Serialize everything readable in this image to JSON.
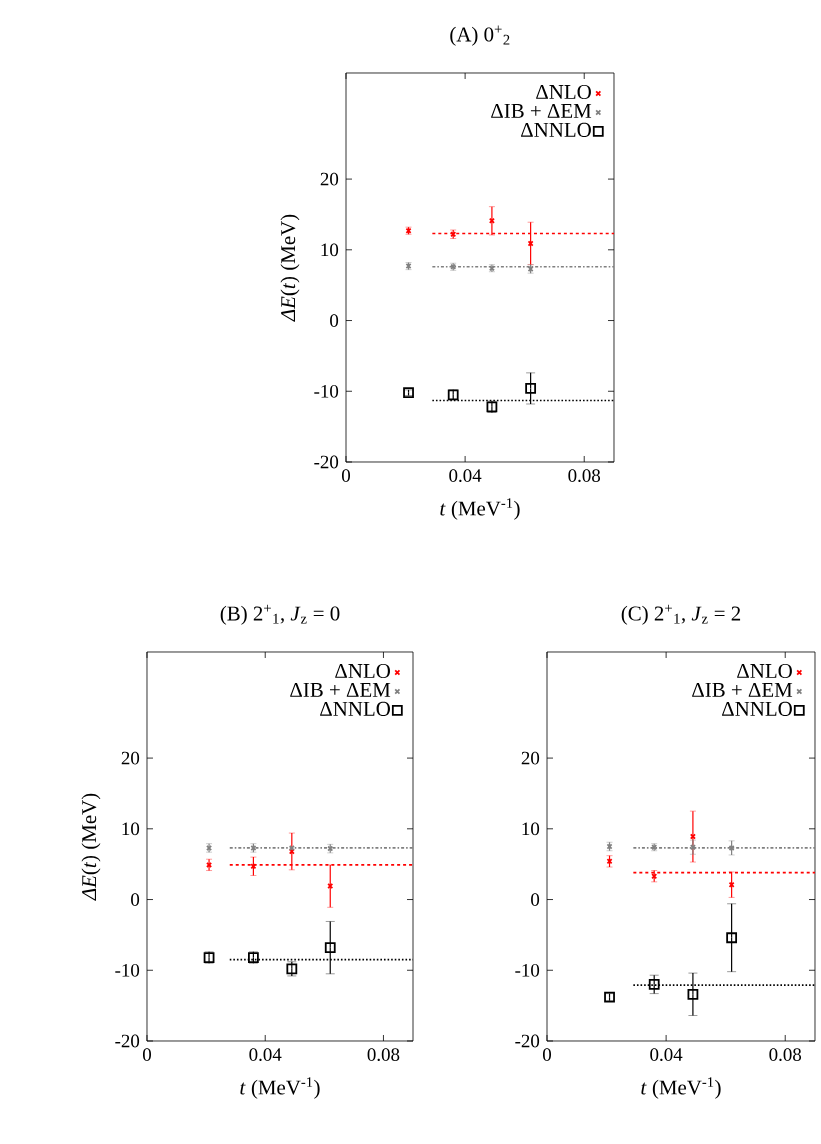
{
  "chart_data": [
    {
      "type": "scatter",
      "title": "(A)  0$^{+}$$_{2}$",
      "xlabel": "*t* (MeV$^{-1}$)",
      "ylabel": "*ΔE*(*t*) (MeV)",
      "xlim": [
        0,
        0.09
      ],
      "ylim": [
        -20,
        35
      ],
      "xticks": [
        0,
        0.04,
        0.08
      ],
      "yticks": [
        -20,
        -10,
        0,
        10,
        20
      ],
      "legend": "top right",
      "x": [
        0.021,
        0.036,
        0.049,
        0.062
      ],
      "series": [
        {
          "name": "ΔNLO",
          "color": "#ff0000",
          "marker": "cross",
          "values": [
            12.7,
            12.2,
            14.1,
            10.9
          ],
          "errors": [
            0.5,
            0.6,
            2.0,
            3.0
          ]
        },
        {
          "name": "ΔIB + ΔEM",
          "color": "#808080",
          "marker": "cross",
          "values": [
            7.7,
            7.6,
            7.4,
            7.3
          ],
          "errors": [
            0.5,
            0.5,
            0.5,
            0.6
          ]
        },
        {
          "name": "ΔNNLO",
          "color": "#000000",
          "marker": "square",
          "values": [
            -10.2,
            -10.5,
            -12.2,
            -9.6
          ],
          "errors": [
            0.4,
            0.7,
            0.8,
            2.2
          ]
        },
        {
          "type": "line",
          "color": "#ff0000",
          "line_style": "dashed",
          "x": [
            0.029,
            0.09
          ],
          "values": [
            12.3,
            12.3
          ]
        },
        {
          "type": "line",
          "color": "#808080",
          "line_style": "dashdot",
          "x": [
            0.029,
            0.09
          ],
          "values": [
            7.6,
            7.6
          ]
        },
        {
          "type": "line",
          "color": "#000000",
          "line_style": "dotted",
          "x": [
            0.029,
            0.09
          ],
          "values": [
            -11.3,
            -11.3
          ]
        }
      ]
    },
    {
      "type": "scatter",
      "title": "(B)  2$^{+}$$_{1}$, *J*$_{z}$ = 0",
      "xlabel": "*t* (MeV$^{-1}$)",
      "ylabel": "*ΔE*(*t*) (MeV)",
      "xlim": [
        0,
        0.09
      ],
      "ylim": [
        -20,
        35
      ],
      "xticks": [
        0,
        0.04,
        0.08
      ],
      "yticks": [
        -20,
        -10,
        0,
        10,
        20
      ],
      "legend": "top right",
      "x": [
        0.021,
        0.036,
        0.049,
        0.062
      ],
      "series": [
        {
          "name": "ΔNLO",
          "color": "#ff0000",
          "marker": "cross",
          "values": [
            4.9,
            4.7,
            6.8,
            1.9
          ],
          "errors": [
            0.8,
            1.3,
            2.6,
            3.0
          ]
        },
        {
          "name": "ΔIB + ΔEM",
          "color": "#808080",
          "marker": "cross",
          "values": [
            7.3,
            7.3,
            7.3,
            7.2
          ],
          "errors": [
            0.6,
            0.6,
            null,
            0.6
          ]
        },
        {
          "name": "ΔNNLO",
          "color": "#000000",
          "marker": "square",
          "values": [
            -8.2,
            -8.2,
            -9.8,
            -6.8
          ],
          "errors": [
            0.8,
            0.8,
            1.0,
            3.7
          ]
        },
        {
          "type": "line",
          "color": "#ff0000",
          "line_style": "dashed",
          "x": [
            0.028,
            0.09
          ],
          "values": [
            4.9,
            4.9
          ]
        },
        {
          "type": "line",
          "color": "#808080",
          "line_style": "dashdot",
          "x": [
            0.028,
            0.09
          ],
          "values": [
            7.3,
            7.3
          ]
        },
        {
          "type": "line",
          "color": "#000000",
          "line_style": "dotted",
          "x": [
            0.028,
            0.09
          ],
          "values": [
            -8.5,
            -8.5
          ]
        }
      ]
    },
    {
      "type": "scatter",
      "title": "(C)  2$^{+}$$_{1}$, *J*$_{z}$ = 2",
      "xlabel": "*t* (MeV$^{-1}$)",
      "xlim": [
        0,
        0.09
      ],
      "ylim": [
        -20,
        35
      ],
      "xticks": [
        0,
        0.04,
        0.08
      ],
      "yticks": [
        -20,
        -10,
        0,
        10,
        20
      ],
      "legend": "top right",
      "x": [
        0.021,
        0.036,
        0.049,
        0.062
      ],
      "series": [
        {
          "name": "ΔNLO",
          "color": "#ff0000",
          "marker": "cross",
          "values": [
            5.4,
            3.3,
            8.9,
            2.1
          ],
          "errors": [
            0.8,
            0.8,
            3.6,
            1.8
          ]
        },
        {
          "name": "ΔIB + ΔEM",
          "color": "#808080",
          "marker": "cross",
          "values": [
            7.5,
            7.4,
            7.4,
            7.3
          ],
          "errors": [
            0.6,
            0.5,
            1.0,
            1.0
          ]
        },
        {
          "name": "ΔNNLO",
          "color": "#000000",
          "marker": "square",
          "values": [
            -13.8,
            -12.0,
            -13.4,
            -5.4
          ],
          "errors": [
            0.5,
            1.3,
            3.0,
            4.8
          ]
        },
        {
          "type": "line",
          "color": "#ff0000",
          "line_style": "dashed",
          "x": [
            0.029,
            0.09
          ],
          "values": [
            3.8,
            3.8
          ]
        },
        {
          "type": "line",
          "color": "#808080",
          "line_style": "dashdot",
          "x": [
            0.029,
            0.09
          ],
          "values": [
            7.3,
            7.3
          ]
        },
        {
          "type": "line",
          "color": "#000000",
          "line_style": "dotted",
          "x": [
            0.029,
            0.09
          ],
          "values": [
            -12.1,
            -12.1
          ]
        }
      ]
    }
  ]
}
